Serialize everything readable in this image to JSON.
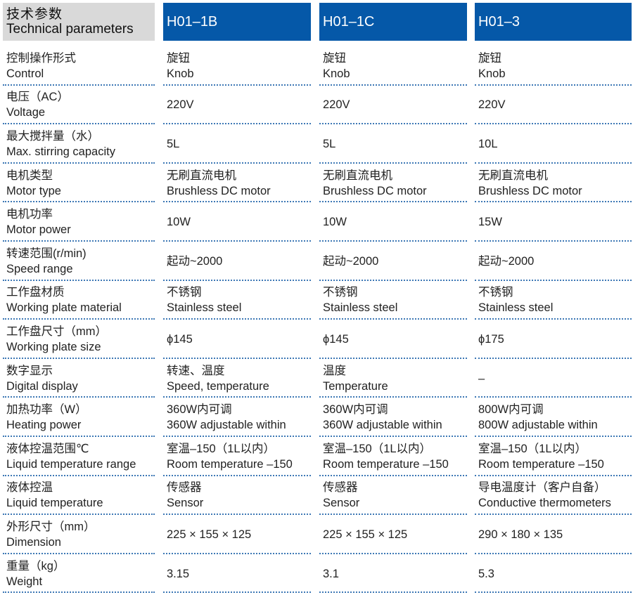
{
  "header": {
    "title_zh": "技术参数",
    "title_en": "Technical parameters",
    "models": [
      "H01–1B",
      "H01–1C",
      "H01–3"
    ]
  },
  "colors": {
    "header_blue": "#0558a8",
    "header_gray": "#d9d9d9",
    "separator": "#3d78b5"
  },
  "rows": [
    {
      "zh": "控制操作形式",
      "en": "Control",
      "values": [
        [
          "旋钮",
          "Knob"
        ],
        [
          "旋钮",
          "Knob"
        ],
        [
          "旋钮",
          "Knob"
        ]
      ]
    },
    {
      "zh": "电压（AC）",
      "en": "Voltage",
      "values": [
        [
          "220V"
        ],
        [
          "220V"
        ],
        [
          "220V"
        ]
      ]
    },
    {
      "zh": "最大搅拌量（水）",
      "en": "Max. stirring capacity",
      "values": [
        [
          "5L"
        ],
        [
          "5L"
        ],
        [
          "10L"
        ]
      ]
    },
    {
      "zh": "电机类型",
      "en": "Motor type",
      "values": [
        [
          "无刷直流电机",
          "Brushless DC motor"
        ],
        [
          "无刷直流电机",
          "Brushless DC motor"
        ],
        [
          "无刷直流电机",
          "Brushless DC motor"
        ]
      ]
    },
    {
      "zh": "电机功率",
      "en": "Motor power",
      "values": [
        [
          "10W"
        ],
        [
          "10W"
        ],
        [
          "15W"
        ]
      ]
    },
    {
      "zh": "转速范围(r/min)",
      "en": "Speed range",
      "values": [
        [
          "起动~2000"
        ],
        [
          "起动~2000"
        ],
        [
          "起动~2000"
        ]
      ]
    },
    {
      "zh": "工作盘材质",
      "en": "Working plate material",
      "values": [
        [
          "不锈钢",
          "Stainless steel"
        ],
        [
          "不锈钢",
          "Stainless steel"
        ],
        [
          "不锈钢",
          "Stainless steel"
        ]
      ]
    },
    {
      "zh": "工作盘尺寸（mm）",
      "en": "Working plate size",
      "values": [
        [
          "ϕ145"
        ],
        [
          "ϕ145"
        ],
        [
          "ϕ175"
        ]
      ]
    },
    {
      "zh": "数字显示",
      "en": "Digital display",
      "values": [
        [
          "转速、温度",
          "Speed, temperature"
        ],
        [
          "温度",
          "Temperature"
        ],
        [
          "–"
        ]
      ]
    },
    {
      "zh": "加热功率（W）",
      "en": "Heating power",
      "values": [
        [
          "360W内可调",
          "360W adjustable within"
        ],
        [
          "360W内可调",
          "360W adjustable within"
        ],
        [
          "800W内可调",
          "800W adjustable within"
        ]
      ]
    },
    {
      "zh": "液体控温范围℃",
      "en": "Liquid temperature range",
      "values": [
        [
          "室温–150（1L以内）",
          "Room temperature –150"
        ],
        [
          "室温–150（1L以内）",
          "Room temperature –150"
        ],
        [
          "室温–150（1L以内）",
          "Room temperature –150"
        ]
      ]
    },
    {
      "zh": "液体控温",
      "en": "Liquid temperature",
      "values": [
        [
          "传感器",
          "Sensor"
        ],
        [
          "传感器",
          "Sensor"
        ],
        [
          "导电温度计（客户自备）",
          "Conductive thermometers"
        ]
      ]
    },
    {
      "zh": "外形尺寸（mm）",
      "en": "Dimension",
      "values": [
        [
          "225 × 155 × 125"
        ],
        [
          "225 × 155 × 125"
        ],
        [
          "290 × 180 × 135"
        ]
      ]
    },
    {
      "zh": "重量（kg）",
      "en": "Weight",
      "values": [
        [
          "3.15"
        ],
        [
          "3.1"
        ],
        [
          "5.3"
        ]
      ]
    }
  ]
}
